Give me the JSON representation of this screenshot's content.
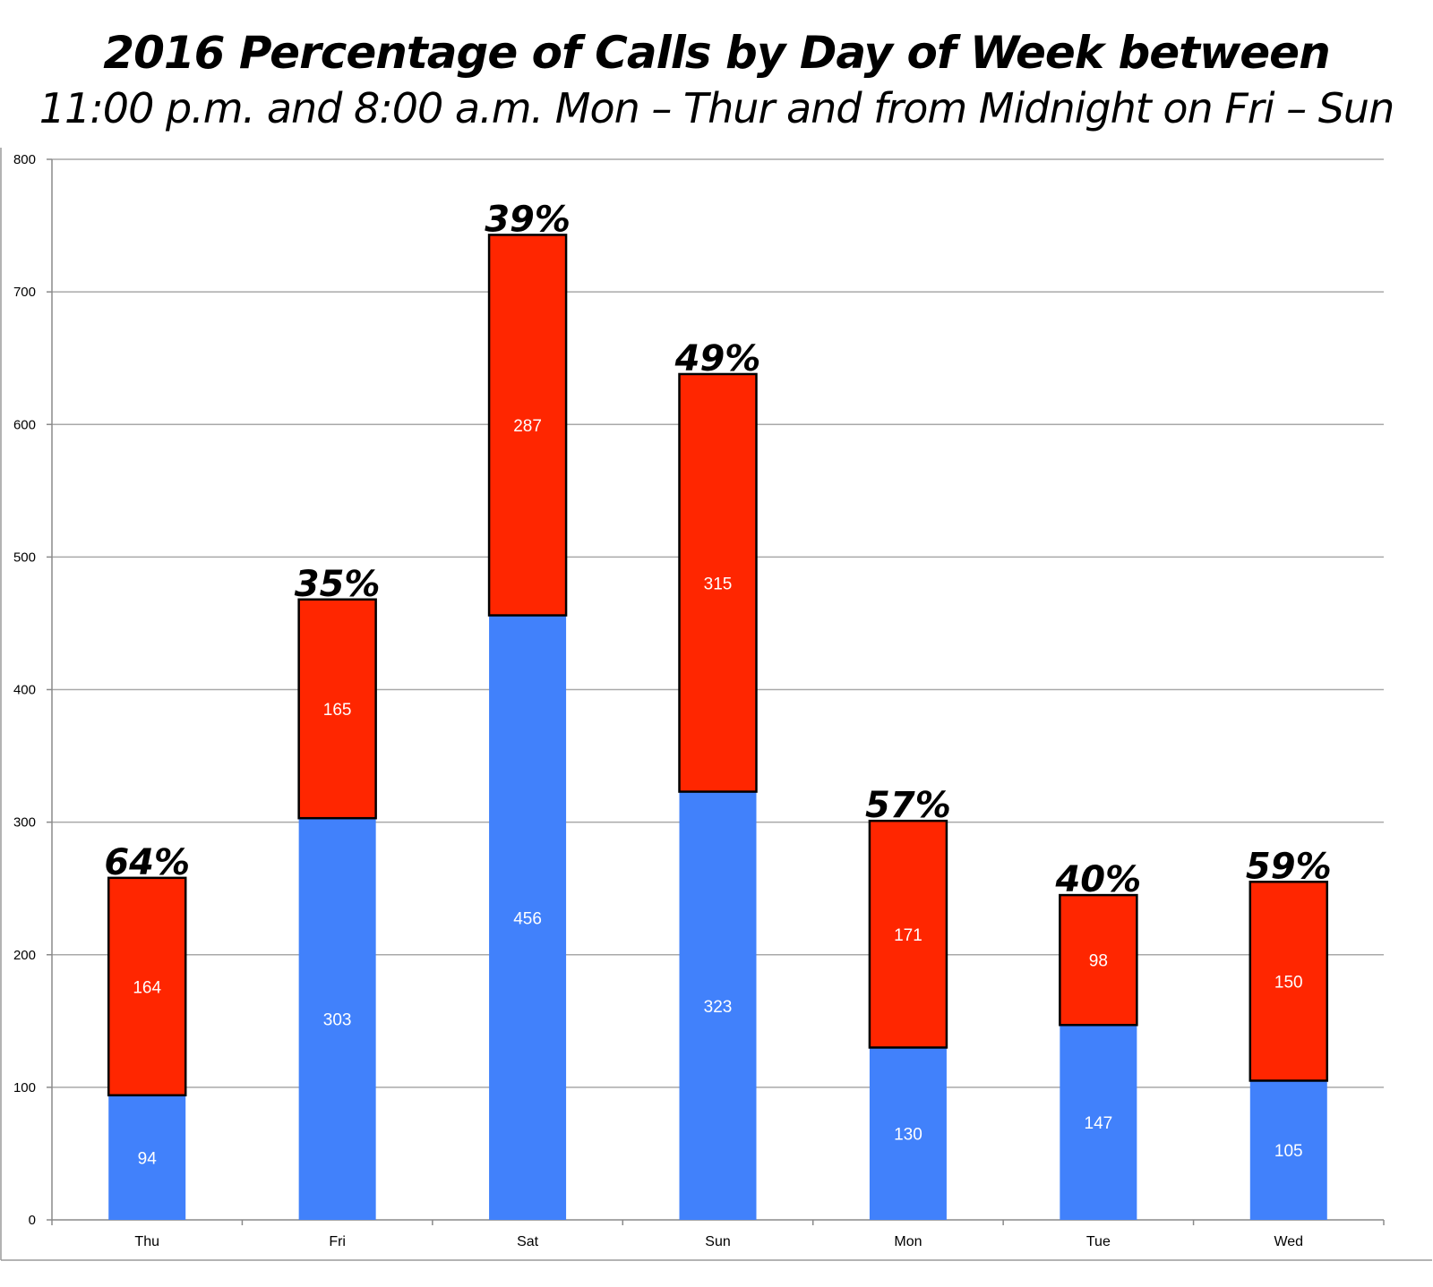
{
  "chart_data": {
    "type": "bar",
    "stacked": true,
    "title": "2016 Percentage of Calls by Day of Week between",
    "subtitle": "11:00 p.m. and 8:00 a.m. Mon – Thur and from Midnight on Fri – Sun",
    "xlabel": "",
    "ylabel": "",
    "ylim": [
      0,
      800
    ],
    "yticks": [
      0,
      100,
      200,
      300,
      400,
      500,
      600,
      700,
      800
    ],
    "grid": true,
    "categories": [
      "Thu",
      "Fri",
      "Sat",
      "Sun",
      "Mon",
      "Tue",
      "Wed"
    ],
    "series": [
      {
        "values": [
          94,
          303,
          456,
          323,
          130,
          147,
          105
        ],
        "color": "#4181fb"
      },
      {
        "values": [
          164,
          165,
          287,
          315,
          171,
          98,
          150
        ],
        "color": "#ff2600"
      }
    ],
    "percent_labels": [
      "64%",
      "35%",
      "39%",
      "49%",
      "57%",
      "40%",
      "59%"
    ]
  }
}
